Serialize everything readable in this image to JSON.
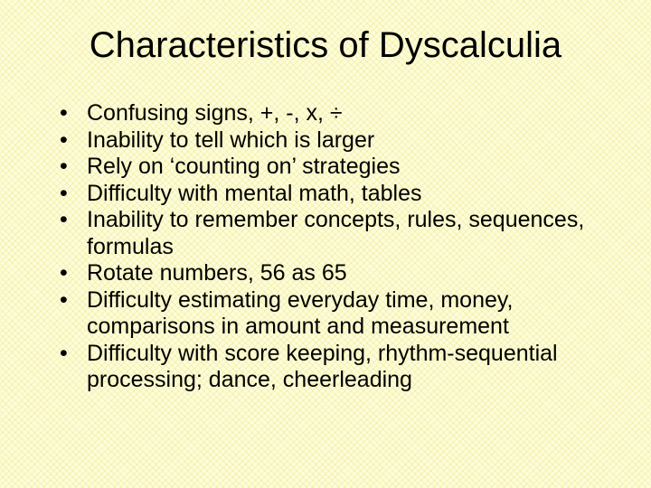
{
  "slide": {
    "background_color": "#fdfdd9",
    "pattern_color": "rgba(230,220,120,0.35)",
    "text_color": "#000000",
    "title": "Characteristics of Dyscalculia",
    "title_fontsize": 40,
    "body_fontsize": 25,
    "font_family": "Arial",
    "bullets": [
      "Confusing signs, +, -, x, ÷",
      "Inability to tell which is larger",
      "Rely on ‘counting on’ strategies",
      "Difficulty with mental math, tables",
      "Inability to remember concepts, rules, sequences, formulas",
      "Rotate numbers, 56 as 65",
      "Difficulty estimating everyday time, money, comparisons in amount and measurement",
      "Difficulty with score keeping, rhythm-sequential processing; dance, cheerleading"
    ]
  }
}
